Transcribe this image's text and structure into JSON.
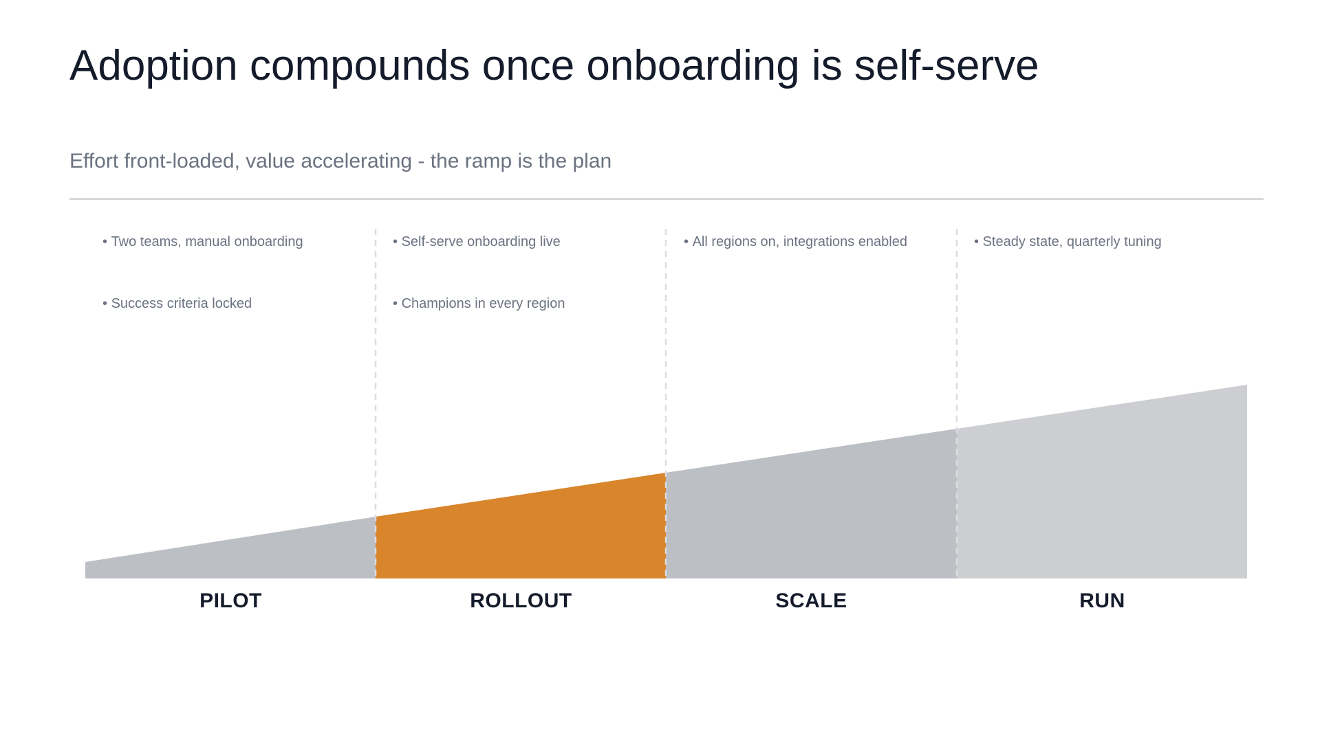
{
  "slide": {
    "title": "Adoption compounds once onboarding is self-serve",
    "subtitle": "Effort front-loaded, value accelerating - the ramp is the plan"
  },
  "phases": [
    {
      "label": "PILOT",
      "bullets": [
        "Two teams, manual onboarding",
        "Success criteria locked"
      ],
      "color": "#bcbfc4",
      "highlighted": false
    },
    {
      "label": "ROLLOUT",
      "bullets": [
        "Self-serve onboarding live",
        "Champions in every region"
      ],
      "color": "#d9852b",
      "highlighted": true
    },
    {
      "label": "SCALE",
      "bullets": [
        "All regions on, integrations enabled"
      ],
      "color": "#bcbfc4",
      "highlighted": false
    },
    {
      "label": "RUN",
      "bullets": [
        "Steady state, quarterly tuning"
      ],
      "color": "#cdced1",
      "highlighted": false
    }
  ],
  "colors": {
    "title": "#141b2b",
    "subtitle": "#6b7280",
    "divider": "#d6d8dc",
    "phase_separator": "#dcdde0",
    "accent": "#d9852b"
  }
}
